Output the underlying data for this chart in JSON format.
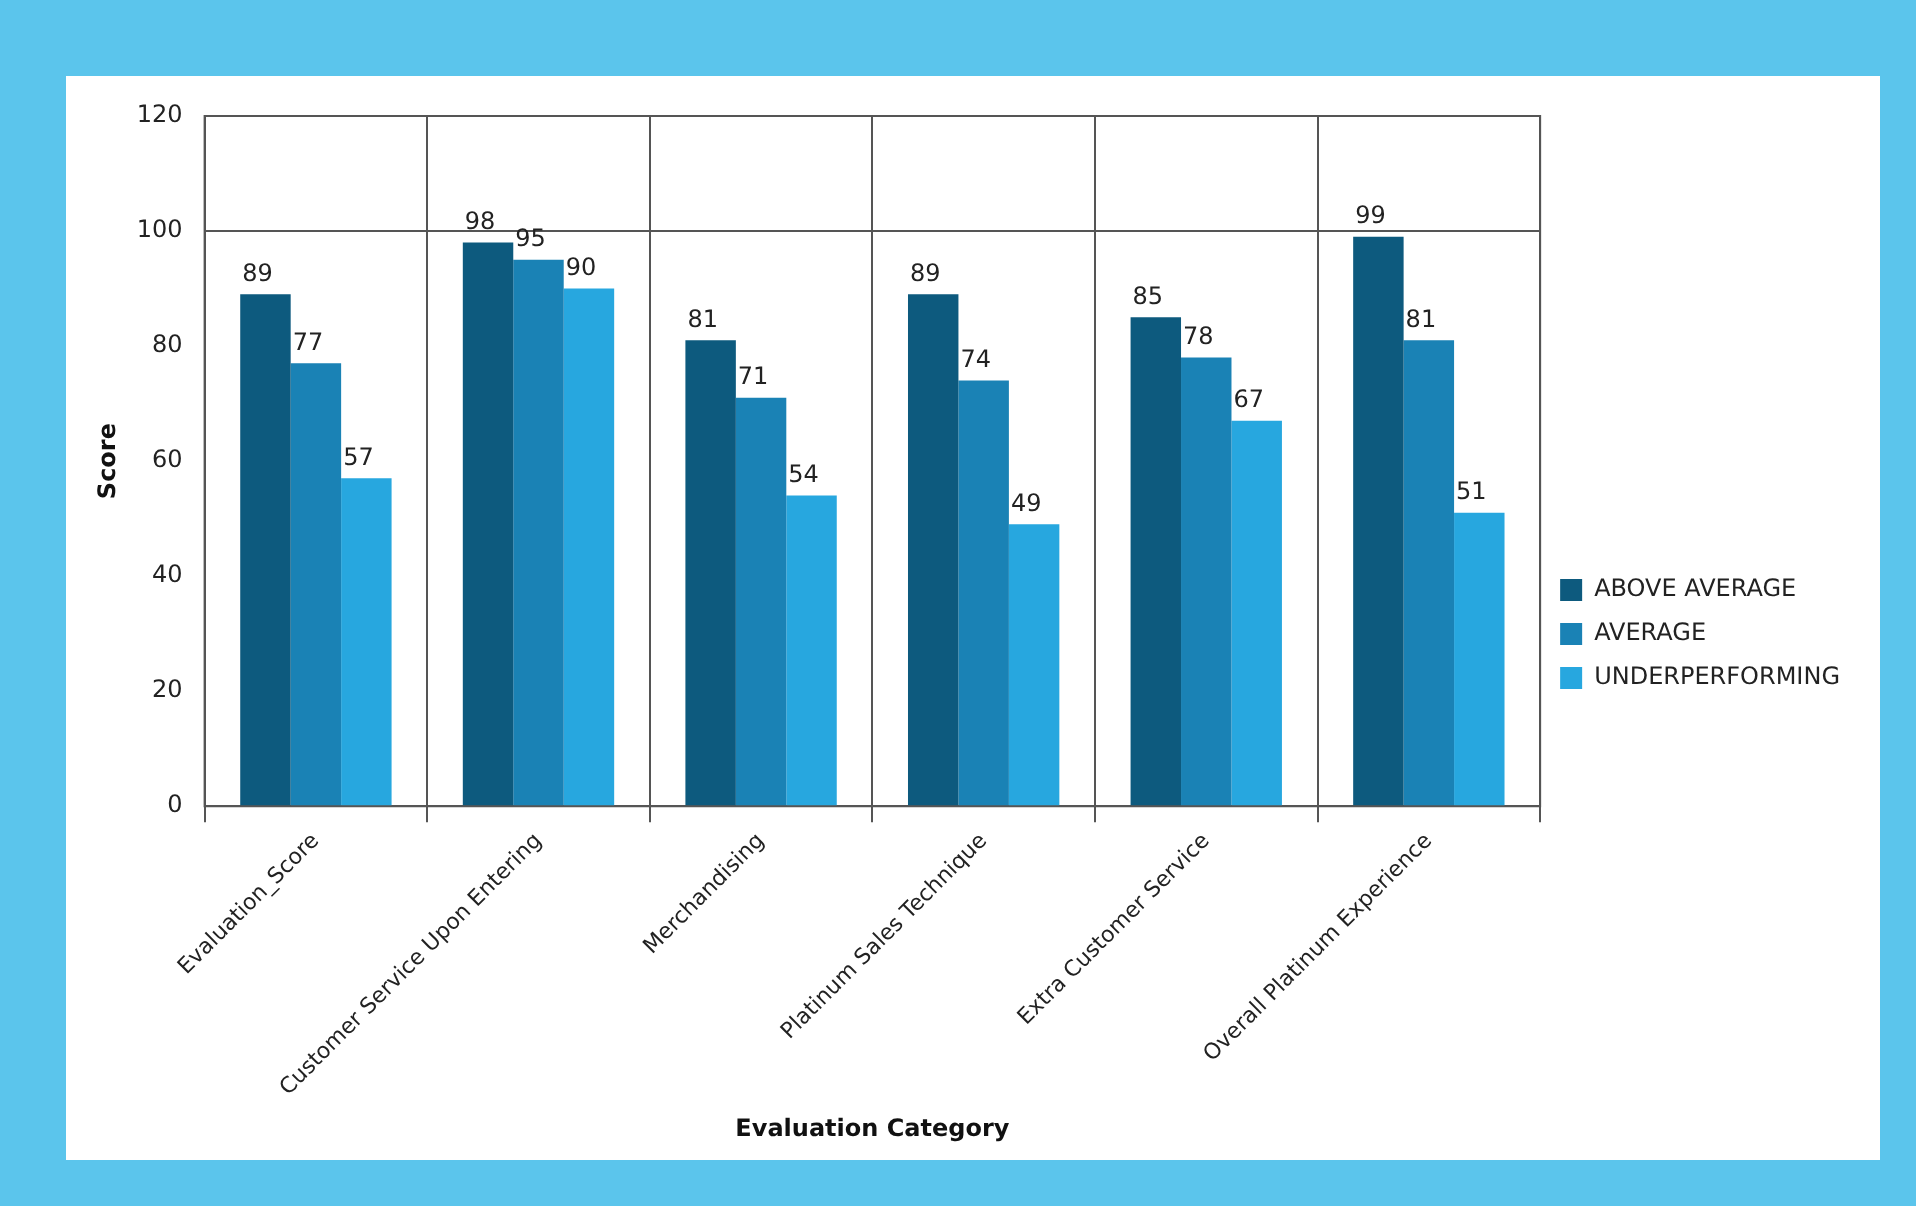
{
  "chart_data": {
    "type": "bar",
    "xlabel": "Evaluation Category",
    "ylabel": "Score",
    "categories": [
      "Evaluation_Score",
      "Customer Service Upon Entering",
      "Merchandising",
      "Platinum Sales Technique",
      "Extra Customer Service",
      "Overall Platinum Experience"
    ],
    "series": [
      {
        "name": "ABOVE AVERAGE",
        "color": "#0d5a7e",
        "values": [
          89,
          98,
          81,
          89,
          85,
          99
        ]
      },
      {
        "name": "AVERAGE",
        "color": "#1a82b5",
        "values": [
          77,
          95,
          71,
          74,
          78,
          81
        ]
      },
      {
        "name": "UNDERPERFORMING",
        "color": "#27a7df",
        "values": [
          57,
          90,
          54,
          49,
          67,
          51
        ]
      }
    ],
    "ylim": [
      0,
      120
    ],
    "yticks": [
      0,
      20,
      40,
      60,
      80,
      100,
      120
    ],
    "grid": "x",
    "ref_lines": [
      {
        "axis": "y",
        "value": 100
      }
    ],
    "legend": "right",
    "data_labels": true
  }
}
